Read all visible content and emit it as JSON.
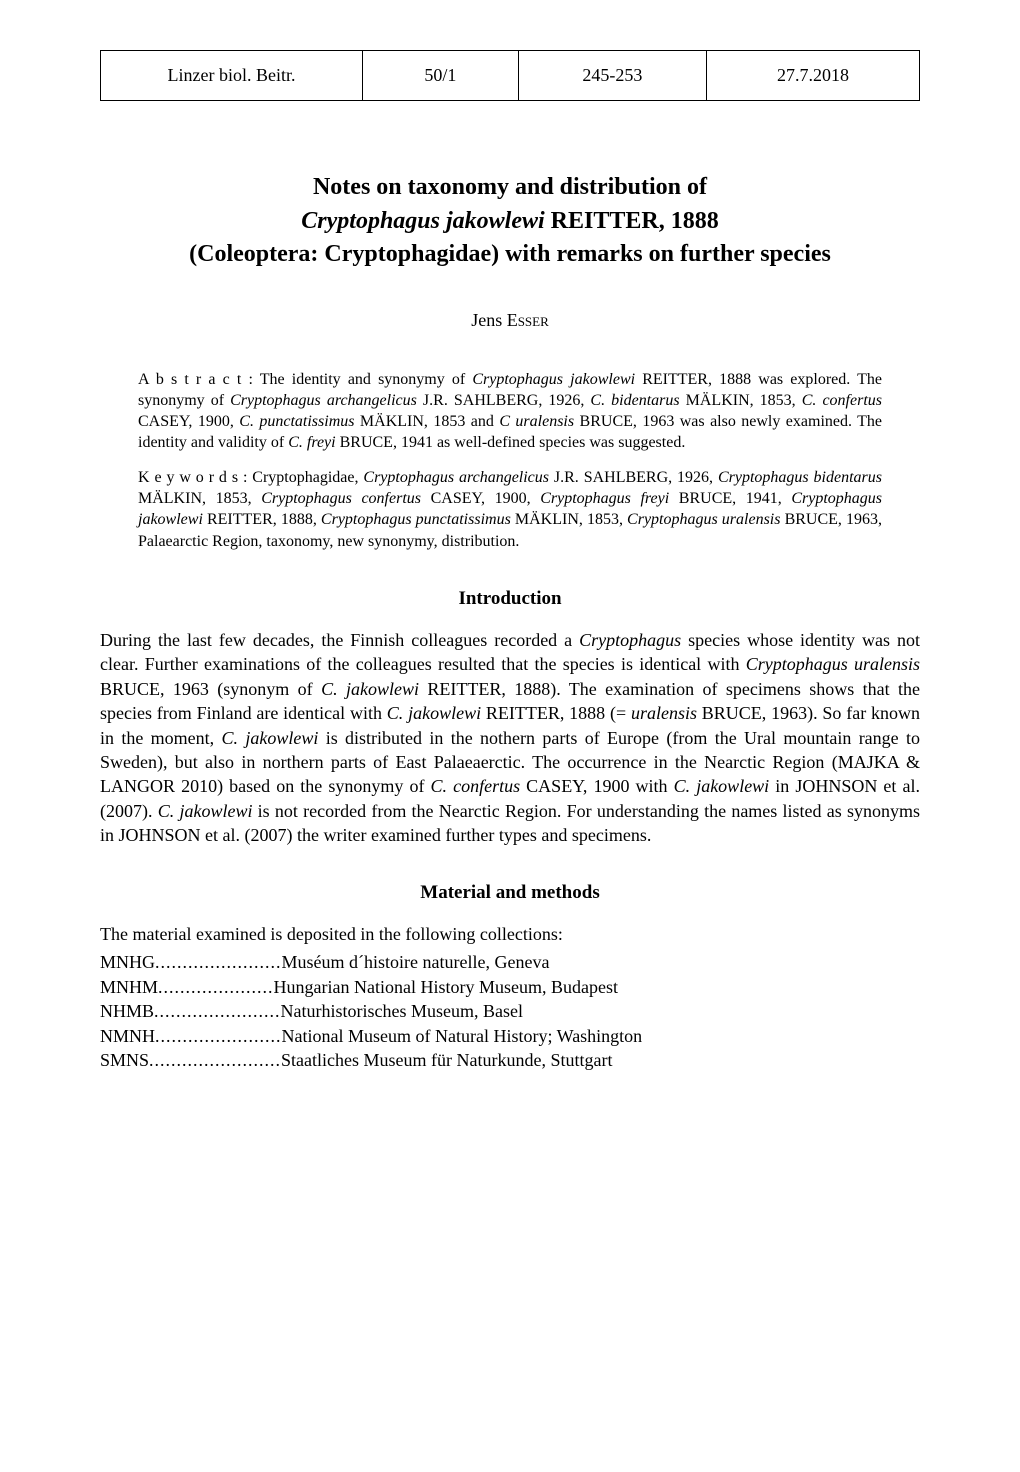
{
  "header": {
    "journal": "Linzer biol. Beitr.",
    "volume": "50/1",
    "pages": "245-253",
    "date": "27.7.2018"
  },
  "title": {
    "line1_a": "Notes on taxonomy and distribution of",
    "line2_species": "Cryptophagus jakowlewi",
    "line2_author": " REITTER, 1888",
    "line3_a": "(Coleoptera: Cryptophagidae) with remarks on further species"
  },
  "author": {
    "first": "Jens ",
    "surname": "Esser"
  },
  "abstract": {
    "label": "A b s t r a c t : ",
    "text_a": "The identity and synonymy of ",
    "sp1": "Cryptophagus jakowlewi",
    "text_b": " REITTER, 1888 was explored. The synonymy of ",
    "sp2": "Cryptophagus archangelicus",
    "text_c": " J.R. SAHLBERG, 1926, ",
    "sp3": "C. bidentarus",
    "text_d": " MÄLKIN, 1853, ",
    "sp4": "C. confertus",
    "text_e": " CASEY, 1900, ",
    "sp5": "C. punctatissimus",
    "text_f": " MÄKLIN, 1853 and ",
    "sp6": "C uralensis",
    "text_g": " BRUCE, 1963 was also newly examined. The identity and validity of ",
    "sp7": "C. freyi",
    "text_h": " BRUCE, 1941 as well-defined species was suggested."
  },
  "keywords": {
    "label": "K e y   w o r d s :  ",
    "text_a": "Cryptophagidae, ",
    "sp1": "Cryptophagus archangelicus",
    "text_b": " J.R. SAHLBERG, 1926, ",
    "sp2": "Cryptophagus bidentarus",
    "text_c": " MÄLKIN, 1853, ",
    "sp3": "Cryptophagus confertus",
    "text_d": " CASEY, 1900, ",
    "sp4": "Cryptophagus freyi",
    "text_e": " BRUCE, 1941, ",
    "sp5": "Cryptophagus jakowlewi",
    "text_f": " REITTER, 1888, ",
    "sp6": "Cryptophagus punctatissimus",
    "text_g": " MÄKLIN, 1853, ",
    "sp7": "Cryptophagus uralensis",
    "text_h": " BRUCE, 1963, Palaearctic Region, taxonomy, new synonymy, distribution."
  },
  "section1": {
    "heading": "Introduction",
    "p1_a": "During the last few decades, the Finnish colleagues recorded a ",
    "p1_sp1": "Cryptophagus",
    "p1_b": " species whose identity was not clear. Further examinations of the colleagues resulted that the species is identical with ",
    "p1_sp2": "Cryptophagus uralensis",
    "p1_c": " BRUCE, 1963 (synonym of ",
    "p1_sp3": "C. jakowlewi",
    "p1_d": " REITTER, 1888). The examination of specimens shows that the species from Finland are identical with ",
    "p1_sp4": "C. jakowlewi",
    "p1_e": " REITTER, 1888 (= ",
    "p1_sp5": "uralensis",
    "p1_f": " BRUCE, 1963). So far known in the moment, ",
    "p1_sp6": "C. jakowlewi",
    "p1_g": " is distributed in the nothern parts of Europe (from the Ural mountain range to Sweden), but also in northern parts of East Palaeaerctic. The occurrence in the Nearctic Region (MAJKA & LANGOR 2010) based on the synonymy of ",
    "p1_sp7": "C. confertus",
    "p1_h": " CASEY, 1900 with ",
    "p1_sp8": "C. jakowlewi",
    "p1_i": " in JOHNSON et al. (2007). ",
    "p1_sp9": "C. jakowlewi",
    "p1_j": " is not recorded from the Nearctic Region. For understanding the names listed as synonyms in JOHNSON et al. (2007) the writer examined further types and specimens."
  },
  "section2": {
    "heading": "Material and methods",
    "intro": "The material examined is deposited in the following collections:",
    "rows": [
      {
        "abbr": "MNHG",
        "dots": ".......................",
        "name": "Muséum d´histoire naturelle, Geneva"
      },
      {
        "abbr": "MNHM",
        "dots": ".....................",
        "name": "Hungarian National History Museum, Budapest"
      },
      {
        "abbr": "NHMB",
        "dots": ".......................",
        "name": "Naturhistorisches Museum, Basel"
      },
      {
        "abbr": "NMNH",
        "dots": ".......................",
        "name": "National Museum of Natural History; Washington"
      },
      {
        "abbr": "SMNS",
        "dots": "........................",
        "name": "Staatliches Museum für Naturkunde, Stuttgart"
      }
    ]
  }
}
